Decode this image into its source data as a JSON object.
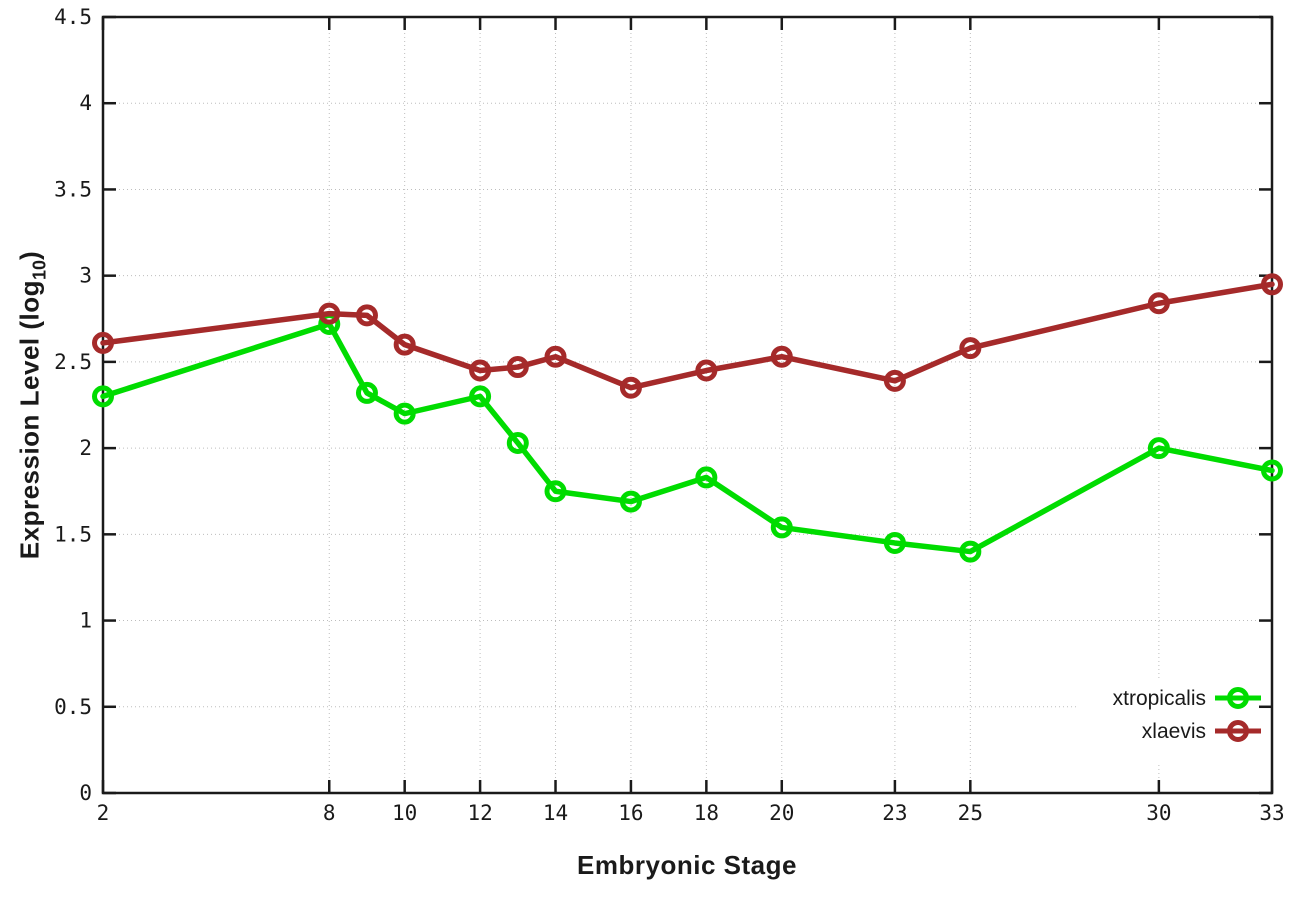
{
  "chart_data": {
    "type": "line",
    "title": "",
    "xlabel": "Embryonic Stage",
    "ylabel": {
      "text": "Expression Level (log",
      "sub": "10",
      "suffix": ")"
    },
    "x": [
      2,
      8,
      9,
      10,
      12,
      13,
      14,
      16,
      18,
      20,
      23,
      25,
      30,
      33
    ],
    "x_ticks": [
      2,
      8,
      10,
      12,
      14,
      16,
      18,
      20,
      23,
      25,
      30,
      33
    ],
    "y_ticks": [
      0,
      0.5,
      1,
      1.5,
      2,
      2.5,
      3,
      3.5,
      4,
      4.5
    ],
    "xlim": [
      2,
      33
    ],
    "ylim": [
      0,
      4.5
    ],
    "grid": true,
    "legend_position": "bottom-right",
    "marker": "open-circle",
    "series": [
      {
        "name": "xtropicalis",
        "color": "#00DC00",
        "values": [
          2.3,
          2.72,
          2.32,
          2.2,
          2.3,
          2.03,
          1.75,
          1.69,
          1.83,
          1.54,
          1.45,
          1.4,
          2.0,
          1.87
        ]
      },
      {
        "name": "xlaevis",
        "color": "#A52A2A",
        "values": [
          2.61,
          2.78,
          2.77,
          2.6,
          2.45,
          2.47,
          2.53,
          2.35,
          2.45,
          2.53,
          2.39,
          2.58,
          2.84,
          2.95
        ]
      }
    ]
  },
  "colors": {
    "background": "#ffffff",
    "axis": "#1a1a1a",
    "grid": "#bdbdbd",
    "text": "#1a1a1a"
  }
}
